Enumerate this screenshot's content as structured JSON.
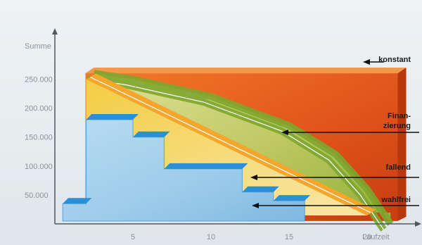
{
  "chart_data": {
    "type": "area",
    "title": "",
    "xlabel": "Laufzeit",
    "ylabel": "Summe",
    "x_ticks": [
      5,
      10,
      15,
      20
    ],
    "y_ticks": [
      50000,
      100000,
      150000,
      200000,
      250000
    ],
    "x_tick_labels": [
      "5",
      "10",
      "15",
      "20"
    ],
    "y_tick_labels": [
      "50.000",
      "100.000",
      "150.000",
      "200.000",
      "250.000"
    ],
    "xlim": [
      1.5,
      24
    ],
    "ylim": [
      0,
      300000
    ],
    "grid": false,
    "series": [
      {
        "name": "konstant",
        "color": "#e2531b",
        "kind": "constant",
        "x": [
          2.5,
          22.5
        ],
        "y": [
          270000,
          270000
        ]
      },
      {
        "name": "Finanzierung",
        "color": "#8fb53a",
        "kind": "curve",
        "x": [
          2.5,
          5,
          10,
          15,
          18,
          20,
          21.5
        ],
        "y": [
          260000,
          250000,
          220000,
          170000,
          120000,
          60000,
          0
        ]
      },
      {
        "name": "fallend",
        "color": "#f2b63a",
        "kind": "linear",
        "x": [
          2,
          20
        ],
        "y": [
          250000,
          0
        ]
      },
      {
        "name": "wahlfrei",
        "color": "#8fc6e8",
        "kind": "step",
        "x": [
          0.5,
          2,
          2,
          5,
          5,
          7,
          7,
          12,
          12,
          14,
          14,
          16
        ],
        "y": [
          35000,
          35000,
          180000,
          180000,
          150000,
          150000,
          95000,
          95000,
          55000,
          55000,
          40000,
          40000
        ]
      }
    ]
  },
  "callouts": [
    {
      "text": "konstant",
      "series": "konstant"
    },
    {
      "text": "Finan-",
      "series": "Finanzierung"
    },
    {
      "text": "zierung",
      "series": "Finanzierung"
    },
    {
      "text": "fallend",
      "series": "fallend"
    },
    {
      "text": "wahlfrei",
      "series": "wahlfrei"
    }
  ]
}
